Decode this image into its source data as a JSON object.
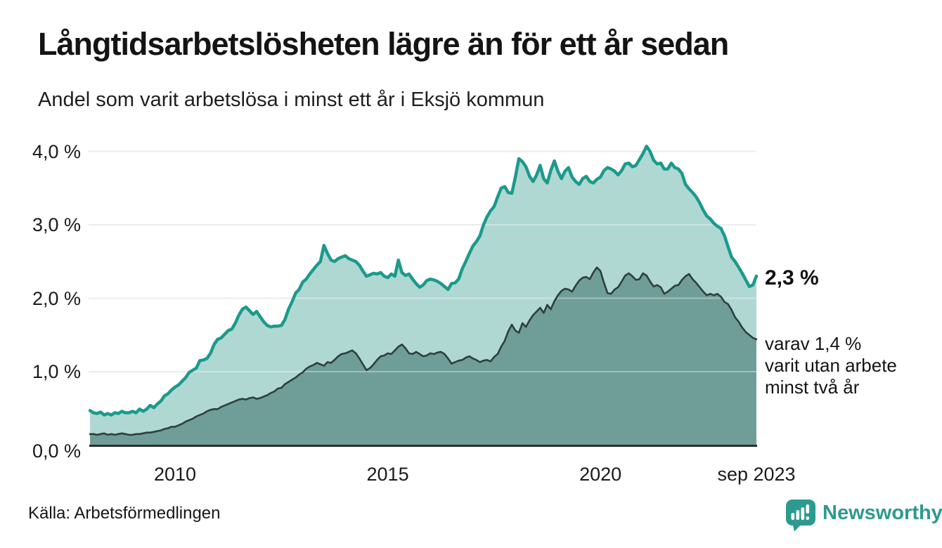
{
  "header": {
    "title": "Långtidsarbetslösheten lägre än för ett år sedan",
    "subtitle": "Andel som varit arbetslösa i minst ett år i Eksjö kommun"
  },
  "annotations": {
    "primary": "2,3 %",
    "secondary_lines": [
      "varav 1,4 %",
      "varit utan arbete",
      "minst två år"
    ]
  },
  "footer": {
    "source": "Källa: Arbetsförmedlingen",
    "brand": "Newsworthy"
  },
  "colors": {
    "accent": "#1b9a8d",
    "area_light": "#b0d8d2",
    "area_dark": "#6f9e98",
    "line_dark": "#2e3f3d",
    "grid": "#e2e2e2",
    "grid_overlay": "rgba(255,255,255,0.35)",
    "axis": "#2d2d2d",
    "brand": "#2d9a8f",
    "text": "#1a1a1a"
  },
  "chart_data": {
    "type": "area",
    "title": "Långtidsarbetslösheten lägre än för ett år sedan",
    "subtitle": "Andel som varit arbetslösa i minst ett år i Eksjö kommun",
    "unit": "%",
    "frequency": "monthly",
    "x_start": "2008-01",
    "x_end": "2023-09",
    "ylim": [
      0,
      4.3
    ],
    "grid": true,
    "legend_position": "none",
    "y_ticks": [
      {
        "value": 0,
        "label": "0,0 %"
      },
      {
        "value": 1,
        "label": "1,0 %"
      },
      {
        "value": 2,
        "label": "2,0 %"
      },
      {
        "value": 3,
        "label": "3,0 %"
      },
      {
        "value": 4,
        "label": "4,0 %"
      }
    ],
    "x_ticks": [
      {
        "month_index": 24,
        "label": "2010"
      },
      {
        "month_index": 84,
        "label": "2015"
      },
      {
        "month_index": 144,
        "label": "2020"
      },
      {
        "month_index": 188,
        "label": "sep 2023"
      }
    ],
    "series": [
      {
        "name": "Andel arbetslösa minst ett år",
        "color_key": "accent",
        "fill_key": "area_light",
        "end_value": 2.3,
        "end_label": "2,3 %",
        "values": [
          0.47,
          0.44,
          0.43,
          0.45,
          0.41,
          0.43,
          0.41,
          0.44,
          0.43,
          0.46,
          0.44,
          0.44,
          0.46,
          0.44,
          0.49,
          0.46,
          0.49,
          0.54,
          0.51,
          0.56,
          0.6,
          0.67,
          0.7,
          0.75,
          0.79,
          0.82,
          0.87,
          0.92,
          0.99,
          1.02,
          1.05,
          1.15,
          1.16,
          1.18,
          1.25,
          1.37,
          1.44,
          1.46,
          1.51,
          1.56,
          1.58,
          1.66,
          1.77,
          1.85,
          1.88,
          1.83,
          1.78,
          1.82,
          1.75,
          1.68,
          1.63,
          1.61,
          1.62,
          1.62,
          1.63,
          1.71,
          1.85,
          1.95,
          2.07,
          2.12,
          2.22,
          2.26,
          2.33,
          2.39,
          2.45,
          2.5,
          2.72,
          2.61,
          2.52,
          2.5,
          2.54,
          2.56,
          2.58,
          2.54,
          2.52,
          2.5,
          2.45,
          2.37,
          2.3,
          2.32,
          2.34,
          2.33,
          2.35,
          2.3,
          2.28,
          2.33,
          2.3,
          2.52,
          2.35,
          2.31,
          2.33,
          2.26,
          2.2,
          2.15,
          2.18,
          2.24,
          2.26,
          2.25,
          2.23,
          2.2,
          2.16,
          2.12,
          2.2,
          2.21,
          2.26,
          2.4,
          2.5,
          2.61,
          2.71,
          2.77,
          2.85,
          3.0,
          3.11,
          3.19,
          3.25,
          3.38,
          3.5,
          3.52,
          3.44,
          3.43,
          3.65,
          3.9,
          3.86,
          3.79,
          3.66,
          3.59,
          3.68,
          3.81,
          3.63,
          3.57,
          3.74,
          3.87,
          3.73,
          3.63,
          3.73,
          3.78,
          3.65,
          3.59,
          3.55,
          3.63,
          3.66,
          3.59,
          3.57,
          3.62,
          3.65,
          3.74,
          3.78,
          3.76,
          3.73,
          3.68,
          3.74,
          3.83,
          3.84,
          3.79,
          3.81,
          3.89,
          3.97,
          4.07,
          4.0,
          3.88,
          3.83,
          3.84,
          3.76,
          3.76,
          3.84,
          3.78,
          3.76,
          3.7,
          3.55,
          3.49,
          3.44,
          3.38,
          3.3,
          3.2,
          3.12,
          3.08,
          3.02,
          2.98,
          2.95,
          2.85,
          2.7,
          2.56,
          2.5,
          2.42,
          2.34,
          2.25,
          2.16,
          2.18,
          2.3
        ]
      },
      {
        "name": "Andel utan arbete minst två år",
        "color_key": "line_dark",
        "fill_key": "area_dark",
        "end_value": 1.4,
        "end_label": "varav 1,4 % varit utan arbete minst två år",
        "values": [
          0.15,
          0.15,
          0.14,
          0.15,
          0.16,
          0.14,
          0.15,
          0.14,
          0.15,
          0.16,
          0.15,
          0.14,
          0.14,
          0.15,
          0.15,
          0.16,
          0.17,
          0.17,
          0.18,
          0.19,
          0.2,
          0.22,
          0.23,
          0.25,
          0.25,
          0.27,
          0.29,
          0.32,
          0.34,
          0.36,
          0.39,
          0.41,
          0.43,
          0.46,
          0.48,
          0.49,
          0.49,
          0.52,
          0.54,
          0.56,
          0.58,
          0.6,
          0.62,
          0.63,
          0.62,
          0.64,
          0.65,
          0.63,
          0.64,
          0.66,
          0.68,
          0.71,
          0.73,
          0.77,
          0.78,
          0.83,
          0.86,
          0.89,
          0.92,
          0.96,
          0.99,
          1.04,
          1.07,
          1.09,
          1.12,
          1.1,
          1.08,
          1.13,
          1.12,
          1.16,
          1.21,
          1.24,
          1.25,
          1.27,
          1.29,
          1.25,
          1.18,
          1.1,
          1.02,
          1.05,
          1.1,
          1.16,
          1.21,
          1.22,
          1.25,
          1.24,
          1.29,
          1.34,
          1.37,
          1.32,
          1.25,
          1.24,
          1.27,
          1.24,
          1.21,
          1.22,
          1.25,
          1.24,
          1.26,
          1.27,
          1.24,
          1.18,
          1.11,
          1.13,
          1.15,
          1.16,
          1.19,
          1.21,
          1.18,
          1.16,
          1.13,
          1.15,
          1.16,
          1.14,
          1.2,
          1.24,
          1.34,
          1.42,
          1.55,
          1.64,
          1.56,
          1.53,
          1.66,
          1.61,
          1.7,
          1.77,
          1.82,
          1.87,
          1.8,
          1.91,
          1.85,
          1.96,
          2.04,
          2.1,
          2.13,
          2.12,
          2.09,
          2.17,
          2.24,
          2.28,
          2.29,
          2.26,
          2.35,
          2.42,
          2.37,
          2.21,
          2.07,
          2.06,
          2.12,
          2.15,
          2.23,
          2.31,
          2.34,
          2.3,
          2.25,
          2.26,
          2.34,
          2.31,
          2.23,
          2.16,
          2.18,
          2.15,
          2.06,
          2.09,
          2.13,
          2.17,
          2.18,
          2.25,
          2.3,
          2.33,
          2.26,
          2.21,
          2.15,
          2.09,
          2.04,
          2.06,
          2.04,
          2.06,
          2.02,
          1.95,
          1.92,
          1.84,
          1.74,
          1.68,
          1.6,
          1.54,
          1.5,
          1.46,
          1.44
        ]
      }
    ]
  }
}
